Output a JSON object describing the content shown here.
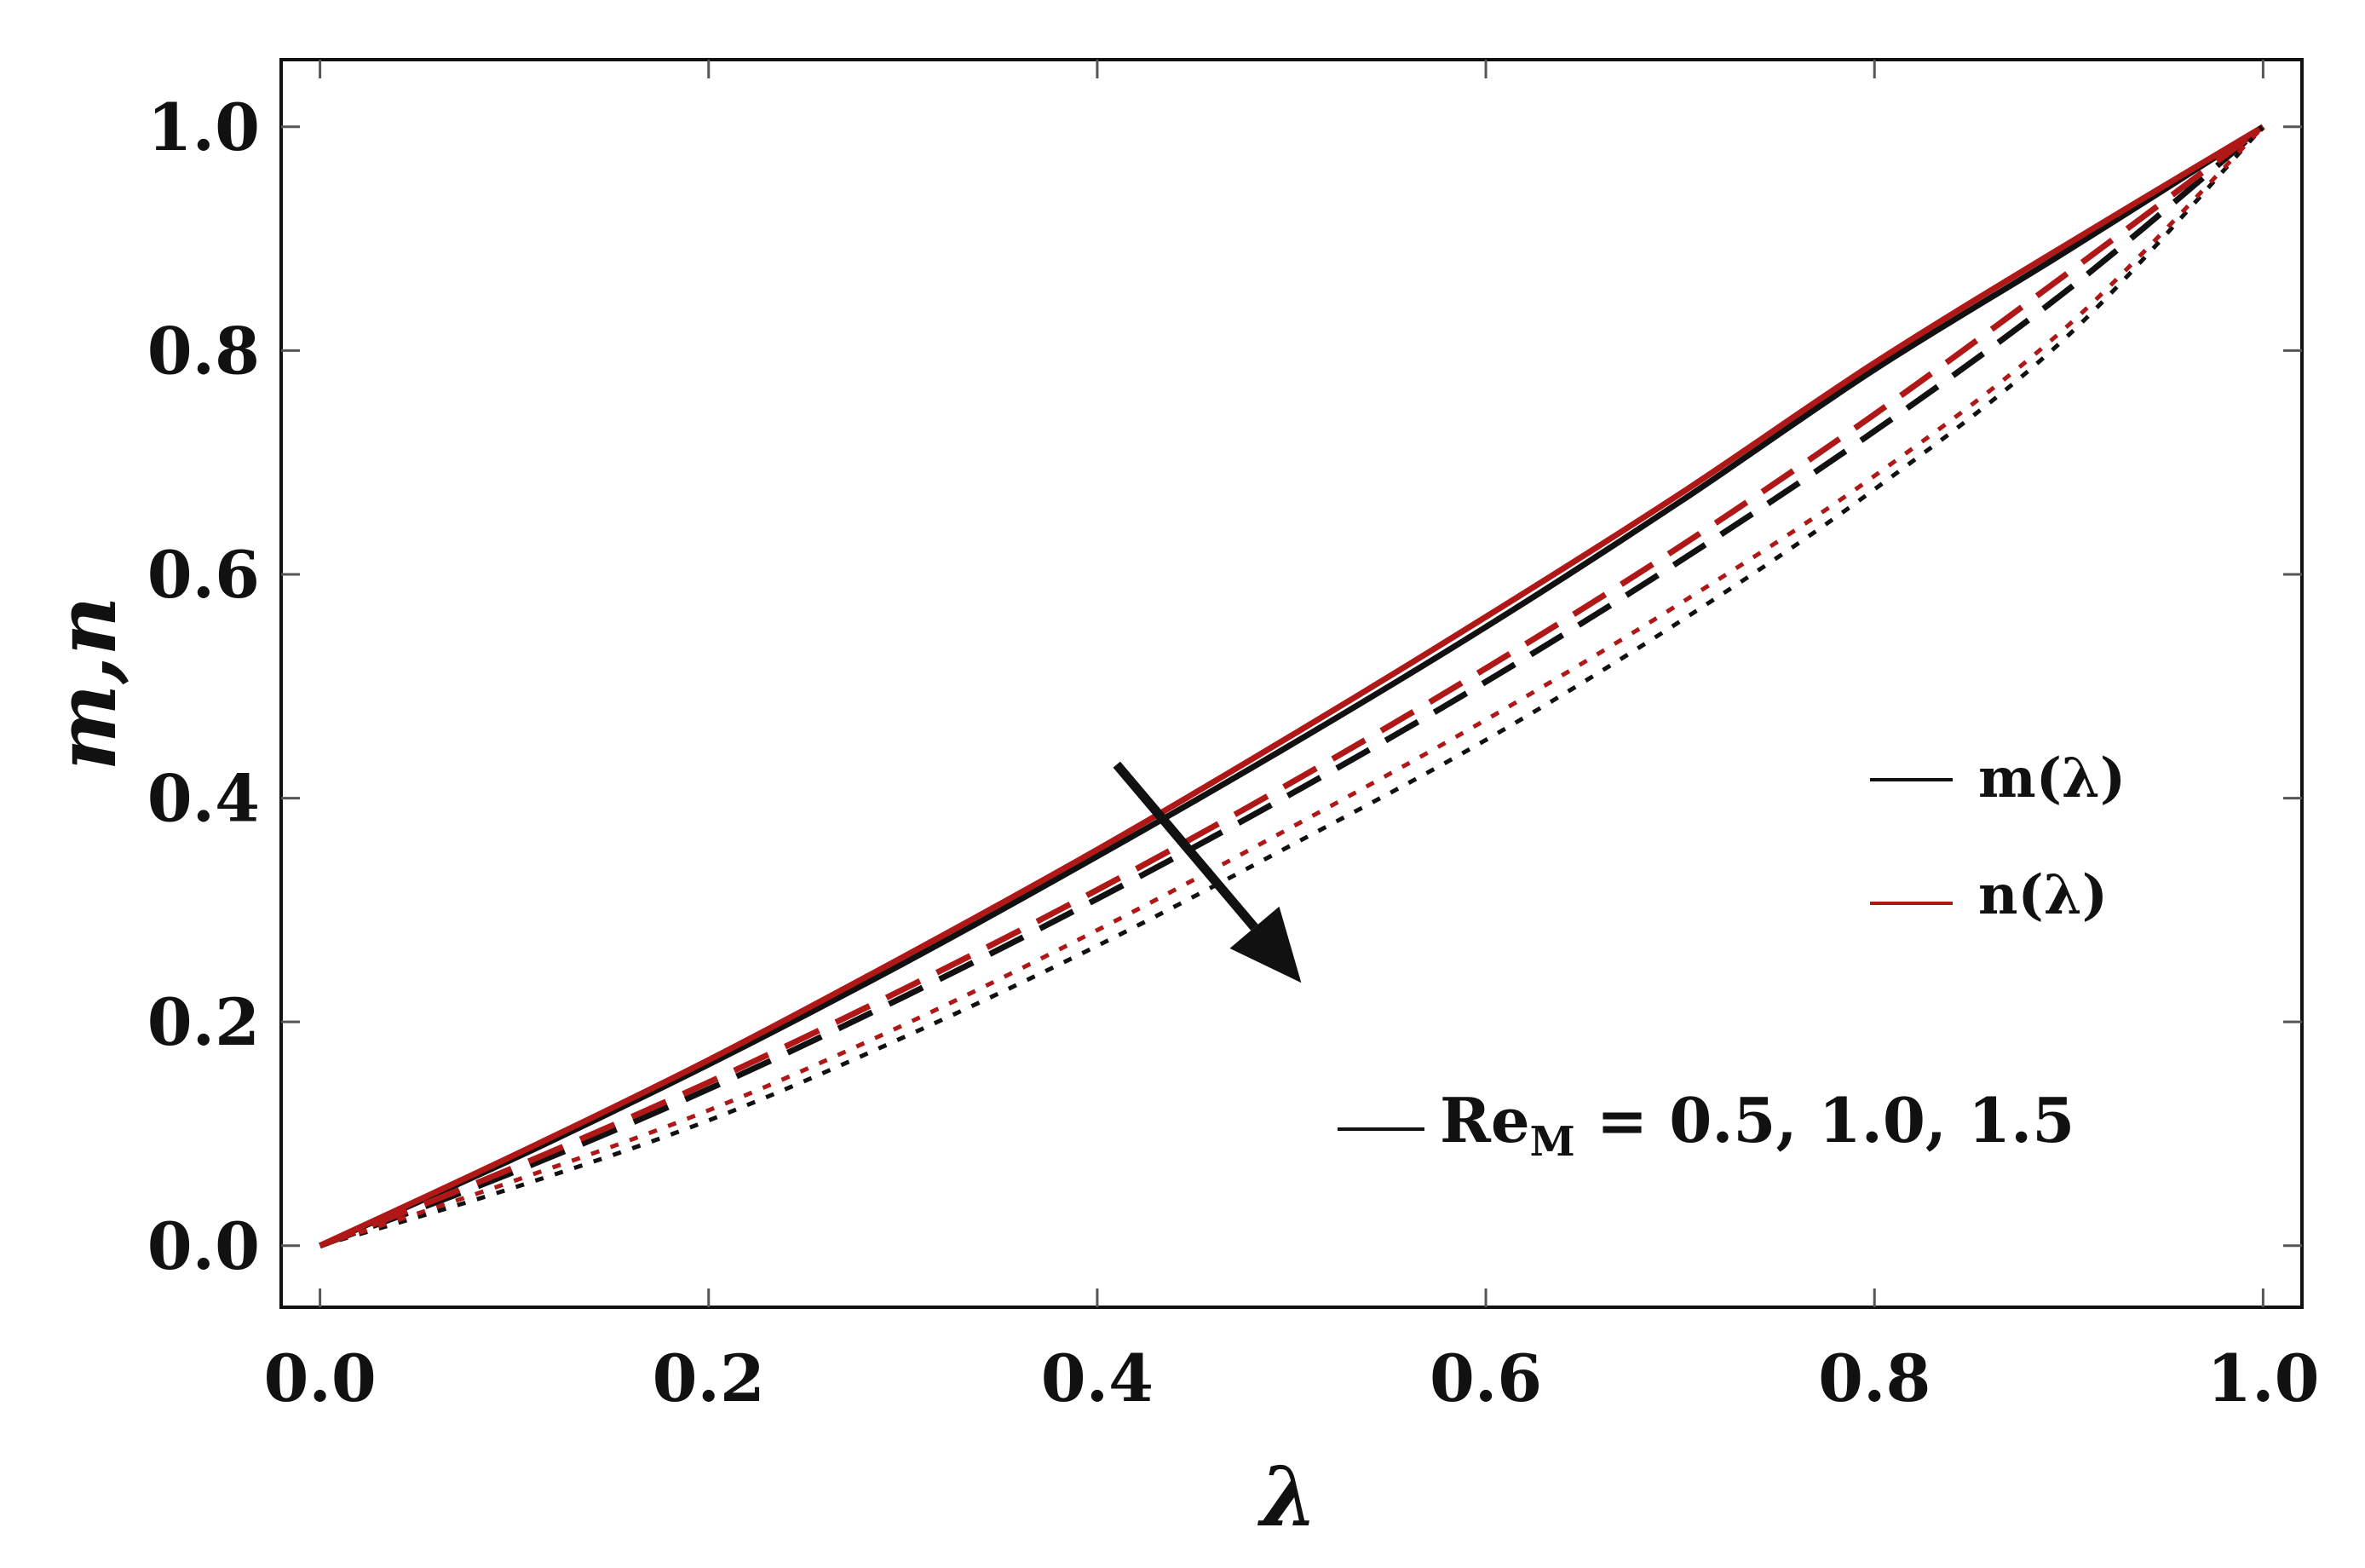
{
  "chart_data": {
    "type": "line",
    "xlabel": "λ",
    "ylabel": "m,n",
    "xlim": [
      -0.02,
      1.02
    ],
    "ylim": [
      -0.055,
      1.06
    ],
    "x_ticks": [
      0.0,
      0.2,
      0.4,
      0.6,
      0.8,
      1.0
    ],
    "y_ticks": [
      0.0,
      0.2,
      0.4,
      0.6,
      0.8,
      1.0
    ],
    "x_tick_labels": [
      "0.0",
      "0.2",
      "0.4",
      "0.6",
      "0.8",
      "1.0"
    ],
    "y_tick_labels": [
      "0.0",
      "0.2",
      "0.4",
      "0.6",
      "0.8",
      "1.0"
    ],
    "x": [
      0.0,
      0.1,
      0.2,
      0.3,
      0.4,
      0.5,
      0.6,
      0.7,
      0.8,
      0.9,
      1.0
    ],
    "series": [
      {
        "name": "m(λ), Re_M = 0.5",
        "color": "#111111",
        "dash": "solid",
        "values": [
          0.0,
          0.078,
          0.162,
          0.252,
          0.348,
          0.448,
          0.553,
          0.665,
          0.783,
          0.89,
          1.0
        ]
      },
      {
        "name": "n(λ), Re_M = 0.5",
        "color": "#b01818",
        "dash": "solid",
        "values": [
          0.0,
          0.081,
          0.166,
          0.258,
          0.354,
          0.456,
          0.562,
          0.672,
          0.789,
          0.896,
          1.0
        ]
      },
      {
        "name": "m(λ), Re_M = 1.0",
        "color": "#111111",
        "dash": "dashed",
        "values": [
          0.0,
          0.066,
          0.14,
          0.222,
          0.31,
          0.404,
          0.504,
          0.612,
          0.728,
          0.855,
          1.0
        ]
      },
      {
        "name": "n(λ), Re_M = 1.0",
        "color": "#b01818",
        "dash": "dashed",
        "values": [
          0.0,
          0.07,
          0.146,
          0.229,
          0.318,
          0.414,
          0.516,
          0.625,
          0.743,
          0.87,
          1.0
        ]
      },
      {
        "name": "m(λ), Re_M = 1.5",
        "color": "#111111",
        "dash": "dotted",
        "values": [
          0.0,
          0.052,
          0.112,
          0.186,
          0.268,
          0.358,
          0.452,
          0.558,
          0.676,
          0.814,
          1.0
        ]
      },
      {
        "name": "n(λ), Re_M = 1.5",
        "color": "#b01818",
        "dash": "dotted",
        "values": [
          0.0,
          0.058,
          0.121,
          0.197,
          0.282,
          0.374,
          0.47,
          0.574,
          0.688,
          0.823,
          1.0
        ]
      }
    ],
    "legend": {
      "items": [
        {
          "label": "m(λ)",
          "color": "#111111"
        },
        {
          "label": "n(λ)",
          "color": "#b01818"
        }
      ],
      "placement": "right"
    },
    "annotation": {
      "text_main": "Re",
      "text_sub": "M",
      "text_values": " = 0.5, 1.0, 1.5",
      "arrow_from": [
        0.41,
        0.43
      ],
      "arrow_to": [
        0.505,
        0.235
      ]
    }
  }
}
